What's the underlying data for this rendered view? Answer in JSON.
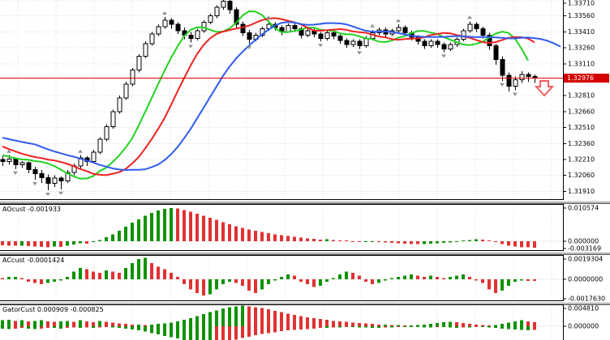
{
  "colors": {
    "bull_fill": "#ffffff",
    "bear_fill": "#000000",
    "candle_outline": "#000000",
    "ma_lips_green": "#22d122",
    "ma_teeth_red": "#ee2222",
    "ma_jaw_blue": "#2f5bf0",
    "hist_up": "#0f9200",
    "hist_down": "#e03232",
    "price_line": "#e00000",
    "price_tag_bg": "#d40000",
    "grid": "#dcdcdc",
    "fractal_gray": "#909090",
    "sell_arrow_red": "#f06060"
  },
  "chart_data": {
    "type": "candlestick",
    "main": {
      "price_axis": {
        "ticks": [
          "1.33710",
          "1.33560",
          "1.33410",
          "1.33260",
          "1.33110",
          "1.32810",
          "1.32660",
          "1.32510",
          "1.32360",
          "1.32210",
          "1.32060",
          "1.31910"
        ],
        "max": 1.3371,
        "min": 1.3191,
        "step": 0.0015
      },
      "current_price": {
        "value": "1.32976",
        "numeric": 1.32976
      },
      "pre_closes": [
        1.3252,
        1.3249,
        1.3246,
        1.3243,
        1.324,
        1.3237,
        1.3234,
        1.3231,
        1.3229,
        1.3227,
        1.3225,
        1.3223,
        1.3222,
        1.3221,
        1.322
      ],
      "candles": [
        [
          1.3221,
          1.3224,
          1.3215,
          1.3219
        ],
        [
          1.3219,
          1.3225,
          1.3216,
          1.32215
        ],
        [
          1.32215,
          1.3223,
          1.3212,
          1.3216
        ],
        [
          1.3216,
          1.32195,
          1.3213,
          1.3218
        ],
        [
          1.3218,
          1.3219,
          1.3208,
          1.32115
        ],
        [
          1.32115,
          1.3214,
          1.3202,
          1.32075
        ],
        [
          1.32075,
          1.3211,
          1.3199,
          1.3204
        ],
        [
          1.3204,
          1.3207,
          1.3192,
          1.31985
        ],
        [
          1.31985,
          1.3206,
          1.3195,
          1.32035
        ],
        [
          1.32035,
          1.3205,
          1.3193,
          1.3201
        ],
        [
          1.3201,
          1.3211,
          1.3199,
          1.3209
        ],
        [
          1.3209,
          1.3217,
          1.3206,
          1.3215
        ],
        [
          1.3215,
          1.3225,
          1.3212,
          1.32225
        ],
        [
          1.32225,
          1.3224,
          1.3215,
          1.3219
        ],
        [
          1.3219,
          1.323,
          1.3217,
          1.3228
        ],
        [
          1.3228,
          1.3242,
          1.3226,
          1.324
        ],
        [
          1.324,
          1.3254,
          1.3238,
          1.3252
        ],
        [
          1.3252,
          1.3268,
          1.325,
          1.3266
        ],
        [
          1.3266,
          1.3281,
          1.3264,
          1.3279
        ],
        [
          1.3279,
          1.3294,
          1.3277,
          1.3292
        ],
        [
          1.3292,
          1.3307,
          1.329,
          1.3305
        ],
        [
          1.3305,
          1.332,
          1.3303,
          1.3318
        ],
        [
          1.3318,
          1.3332,
          1.3316,
          1.333
        ],
        [
          1.333,
          1.3341,
          1.3328,
          1.3339
        ],
        [
          1.3339,
          1.3348,
          1.3337,
          1.3346
        ],
        [
          1.3346,
          1.3355,
          1.3344,
          1.3352
        ],
        [
          1.3352,
          1.3354,
          1.3344,
          1.3348
        ],
        [
          1.3348,
          1.335,
          1.3339,
          1.3342
        ],
        [
          1.3342,
          1.3345,
          1.3334,
          1.3338
        ],
        [
          1.3338,
          1.3341,
          1.3331,
          1.3335
        ],
        [
          1.3335,
          1.3344,
          1.3333,
          1.3342
        ],
        [
          1.3342,
          1.3352,
          1.334,
          1.335
        ],
        [
          1.335,
          1.3358,
          1.3348,
          1.3356
        ],
        [
          1.3356,
          1.3366,
          1.3354,
          1.3364
        ],
        [
          1.3364,
          1.3373,
          1.3362,
          1.337
        ],
        [
          1.337,
          1.3372,
          1.3358,
          1.3362
        ],
        [
          1.3362,
          1.3364,
          1.3345,
          1.3348
        ],
        [
          1.3348,
          1.3351,
          1.3337,
          1.334
        ],
        [
          1.334,
          1.3343,
          1.333,
          1.3334
        ],
        [
          1.3334,
          1.334,
          1.3332,
          1.3338
        ],
        [
          1.3338,
          1.3346,
          1.3336,
          1.3344
        ],
        [
          1.3344,
          1.3351,
          1.3342,
          1.3348
        ],
        [
          1.3348,
          1.335,
          1.3342,
          1.3345
        ],
        [
          1.3345,
          1.3347,
          1.3338,
          1.3341
        ],
        [
          1.3341,
          1.3349,
          1.334,
          1.3347
        ],
        [
          1.3347,
          1.3349,
          1.3341,
          1.3344
        ],
        [
          1.3344,
          1.3346,
          1.3335,
          1.3338
        ],
        [
          1.3338,
          1.3344,
          1.3336,
          1.3342
        ],
        [
          1.3342,
          1.3344,
          1.3336,
          1.3339
        ],
        [
          1.3339,
          1.3341,
          1.3332,
          1.3335
        ],
        [
          1.3335,
          1.3342,
          1.3333,
          1.334
        ],
        [
          1.334,
          1.3342,
          1.3334,
          1.3337
        ],
        [
          1.3337,
          1.3339,
          1.333,
          1.3333
        ],
        [
          1.3333,
          1.3335,
          1.3326,
          1.3329
        ],
        [
          1.3329,
          1.3334,
          1.3327,
          1.3332
        ],
        [
          1.3332,
          1.3334,
          1.3325,
          1.3328
        ],
        [
          1.3328,
          1.3337,
          1.3326,
          1.3335
        ],
        [
          1.3335,
          1.3343,
          1.3333,
          1.334
        ],
        [
          1.334,
          1.3345,
          1.3338,
          1.3343
        ],
        [
          1.3343,
          1.3345,
          1.3336,
          1.3339
        ],
        [
          1.3339,
          1.3344,
          1.3337,
          1.3342
        ],
        [
          1.3342,
          1.3348,
          1.334,
          1.3345
        ],
        [
          1.3345,
          1.3347,
          1.3338,
          1.334
        ],
        [
          1.334,
          1.3342,
          1.3333,
          1.3336
        ],
        [
          1.3336,
          1.3338,
          1.3329,
          1.3332
        ],
        [
          1.3332,
          1.3334,
          1.3325,
          1.3328
        ],
        [
          1.3328,
          1.3334,
          1.3326,
          1.3332
        ],
        [
          1.3332,
          1.3334,
          1.3326,
          1.3329
        ],
        [
          1.3329,
          1.3331,
          1.3322,
          1.3325
        ],
        [
          1.3325,
          1.3331,
          1.3323,
          1.3329
        ],
        [
          1.3329,
          1.3336,
          1.3327,
          1.3334
        ],
        [
          1.3334,
          1.3344,
          1.3332,
          1.3342
        ],
        [
          1.3342,
          1.3351,
          1.334,
          1.3348
        ],
        [
          1.3348,
          1.335,
          1.3341,
          1.3344
        ],
        [
          1.3344,
          1.3346,
          1.3335,
          1.3338
        ],
        [
          1.3338,
          1.334,
          1.3324,
          1.3328
        ],
        [
          1.3328,
          1.333,
          1.331,
          1.3315
        ],
        [
          1.3315,
          1.3318,
          1.3295,
          1.33
        ],
        [
          1.33,
          1.3303,
          1.3285,
          1.329
        ],
        [
          1.329,
          1.3299,
          1.3286,
          1.3296
        ],
        [
          1.3296,
          1.3304,
          1.3293,
          1.3301
        ],
        [
          1.3301,
          1.3303,
          1.3294,
          1.3299
        ],
        [
          1.3299,
          1.3301,
          1.3293,
          1.32976
        ]
      ],
      "overlays": [
        {
          "name": "alligator-lips",
          "window": 5,
          "shift": 3,
          "color_key": "ma_lips_green",
          "max_d": 81
        },
        {
          "name": "alligator-teeth",
          "window": 8,
          "shift": 5,
          "color_key": "ma_teeth_red",
          "max_d": 82
        },
        {
          "name": "alligator-jaw",
          "window": 13,
          "shift": 8,
          "color_key": "ma_jaw_blue",
          "max_d": 87
        }
      ],
      "fractals": {
        "up": [
          1,
          12,
          25,
          34,
          41,
          57,
          61,
          72
        ],
        "down": [
          2,
          5,
          7,
          9,
          29,
          38,
          49,
          55,
          68,
          77,
          79
        ]
      },
      "sell_arrow_index": 82
    },
    "indicators": [
      {
        "name": "AOcust",
        "label": "AOcust -0.001933",
        "ticks": [
          {
            "label": "0.010574",
            "value": 0.010574
          },
          {
            "label": "0.000000",
            "value": 0
          },
          {
            "label": "-0.003169",
            "value": -0.003169
          }
        ],
        "values": [
          -0.0012,
          -0.0013,
          -0.0014,
          -0.0013,
          -0.0015,
          -0.0016,
          -0.0017,
          -0.0018,
          -0.0016,
          -0.0017,
          -0.0014,
          -0.001,
          -0.0006,
          -0.0007,
          -0.0003,
          0.0004,
          0.0012,
          0.0021,
          0.0032,
          0.0044,
          0.0056,
          0.0067,
          0.0077,
          0.0086,
          0.0093,
          0.0098,
          0.0101,
          0.0099,
          0.0095,
          0.009,
          0.0084,
          0.0078,
          0.0071,
          0.0065,
          0.0058,
          0.0052,
          0.0046,
          0.0041,
          0.0036,
          0.0032,
          0.0028,
          0.0024,
          0.0021,
          0.0018,
          0.0016,
          0.0013,
          0.0011,
          0.0009,
          0.0007,
          0.0005,
          0.0006,
          0.0004,
          0.0002,
          0.0001,
          -0.0001,
          -0.0003,
          -0.0002,
          -0.0001,
          -0.0002,
          -0.0004,
          -0.0005,
          -0.0006,
          -0.0007,
          -0.0008,
          -0.0009,
          -0.0008,
          -0.0007,
          -0.0006,
          -0.0005,
          -0.0004,
          -0.0002,
          0.0001,
          0.0004,
          0.0006,
          0.0005,
          0.0002,
          -0.0003,
          -0.0008,
          -0.0013,
          -0.0016,
          -0.0018,
          -0.0019,
          -0.001933
        ]
      },
      {
        "name": "ACcust",
        "label": "ACcust -0.0001424",
        "ticks": [
          {
            "label": "0.0019304",
            "value": 0.0019304
          },
          {
            "label": "0.0000000",
            "value": 0
          },
          {
            "label": "-0.0017630",
            "value": -0.001763
          }
        ],
        "values": [
          0.0001,
          0.0002,
          0.0002,
          0.0001,
          -0.0002,
          -0.0003,
          -0.0004,
          -0.0003,
          -0.0002,
          -0.0001,
          0.0002,
          0.0006,
          0.0009,
          0.0008,
          0.0006,
          0.0005,
          0.0007,
          0.0006,
          0.0005,
          0.0009,
          0.0013,
          0.0016,
          0.0017,
          0.0013,
          0.001,
          0.0008,
          0.0005,
          0.0002,
          -0.0004,
          -0.0008,
          -0.0011,
          -0.0013,
          -0.0012,
          -0.0008,
          -0.0004,
          -0.0002,
          -0.0003,
          -0.0005,
          -0.0009,
          -0.0011,
          -0.0008,
          -0.0004,
          -0.0001,
          0.0002,
          0.0004,
          0.0003,
          -0.0002,
          -0.0004,
          -0.0006,
          -0.0005,
          -0.0002,
          0.0001,
          0.0004,
          0.0006,
          0.0005,
          0.0003,
          -0.0002,
          -0.0004,
          -0.0003,
          -0.0001,
          0.0001,
          0.0002,
          0.0003,
          0.0004,
          0.0003,
          0.0002,
          0.0003,
          0.0002,
          0.0001,
          0.0002,
          0.0003,
          0.0004,
          0.0002,
          -0.0001,
          -0.0003,
          -0.0008,
          -0.0011,
          -0.0009,
          -0.0005,
          -0.0002,
          -0.0001,
          -0.00013,
          -0.0001424
        ]
      },
      {
        "name": "GatorCust",
        "label": "GatorCust 0.000909 -0.000825",
        "ticks": [
          {
            "label": "0.004810",
            "value": 0.00481
          },
          {
            "label": "0.000000",
            "value": 0
          }
        ],
        "up": [
          0.0013,
          0.0014,
          0.0012,
          0.0013,
          0.0011,
          0.0012,
          0.0013,
          0.0011,
          0.001,
          0.0011,
          0.0012,
          0.001,
          0.0013,
          0.0011,
          0.0009,
          0.0012,
          0.001,
          0.0008,
          0.0006,
          0.0005,
          0.0004,
          0.0004,
          0.0003,
          0.0004,
          0.0005,
          0.0006,
          0.0008,
          0.0011,
          0.0014,
          0.0018,
          0.0022,
          0.0027,
          0.0031,
          0.0035,
          0.0039,
          0.0042,
          0.0044,
          0.0045,
          0.0044,
          0.0042,
          0.004,
          0.0037,
          0.0034,
          0.0031,
          0.0028,
          0.0025,
          0.0022,
          0.002,
          0.0018,
          0.0016,
          0.0014,
          0.0012,
          0.0011,
          0.001,
          0.0008,
          0.0007,
          0.0006,
          0.0005,
          0.0004,
          0.0004,
          0.0003,
          0.0003,
          0.0002,
          0.0002,
          0.0003,
          0.0004,
          0.0005,
          0.0007,
          0.0009,
          0.001,
          0.0009,
          0.0007,
          0.0005,
          0.0004,
          0.0003,
          0.0002,
          0.0003,
          0.0005,
          0.0008,
          0.0011,
          0.0013,
          0.0011,
          0.000909
        ],
        "down": [
          -0.0005,
          -0.0006,
          -0.0005,
          -0.0004,
          -0.0005,
          -0.0006,
          -0.0005,
          -0.0004,
          -0.0004,
          -0.0005,
          -0.0004,
          -0.0003,
          -0.0004,
          -0.0003,
          -0.0004,
          -0.0003,
          -0.0002,
          -0.0003,
          -0.0004,
          -0.0005,
          -0.0007,
          -0.0009,
          -0.0012,
          -0.0015,
          -0.0018,
          -0.0021,
          -0.0024,
          -0.0027,
          -0.003,
          -0.0032,
          -0.0034,
          -0.0035,
          -0.0035,
          -0.0034,
          -0.0033,
          -0.0031,
          -0.0029,
          -0.0026,
          -0.0023,
          -0.002,
          -0.0017,
          -0.0015,
          -0.0013,
          -0.0011,
          -0.0009,
          -0.0008,
          -0.0007,
          -0.0006,
          -0.0005,
          -0.0004,
          -0.0004,
          -0.0003,
          -0.0003,
          -0.0002,
          -0.0002,
          -0.0003,
          -0.0003,
          -0.0004,
          -0.0004,
          -0.0003,
          -0.0003,
          -0.0002,
          -0.0002,
          -0.0002,
          -0.0002,
          -0.0003,
          -0.0003,
          -0.0002,
          -0.0002,
          -0.0003,
          -0.0004,
          -0.0003,
          -0.0003,
          -0.0002,
          -0.0002,
          -0.0003,
          -0.0004,
          -0.0005,
          -0.0006,
          -0.0007,
          -0.0008,
          -0.0009,
          -0.000825
        ]
      }
    ]
  }
}
